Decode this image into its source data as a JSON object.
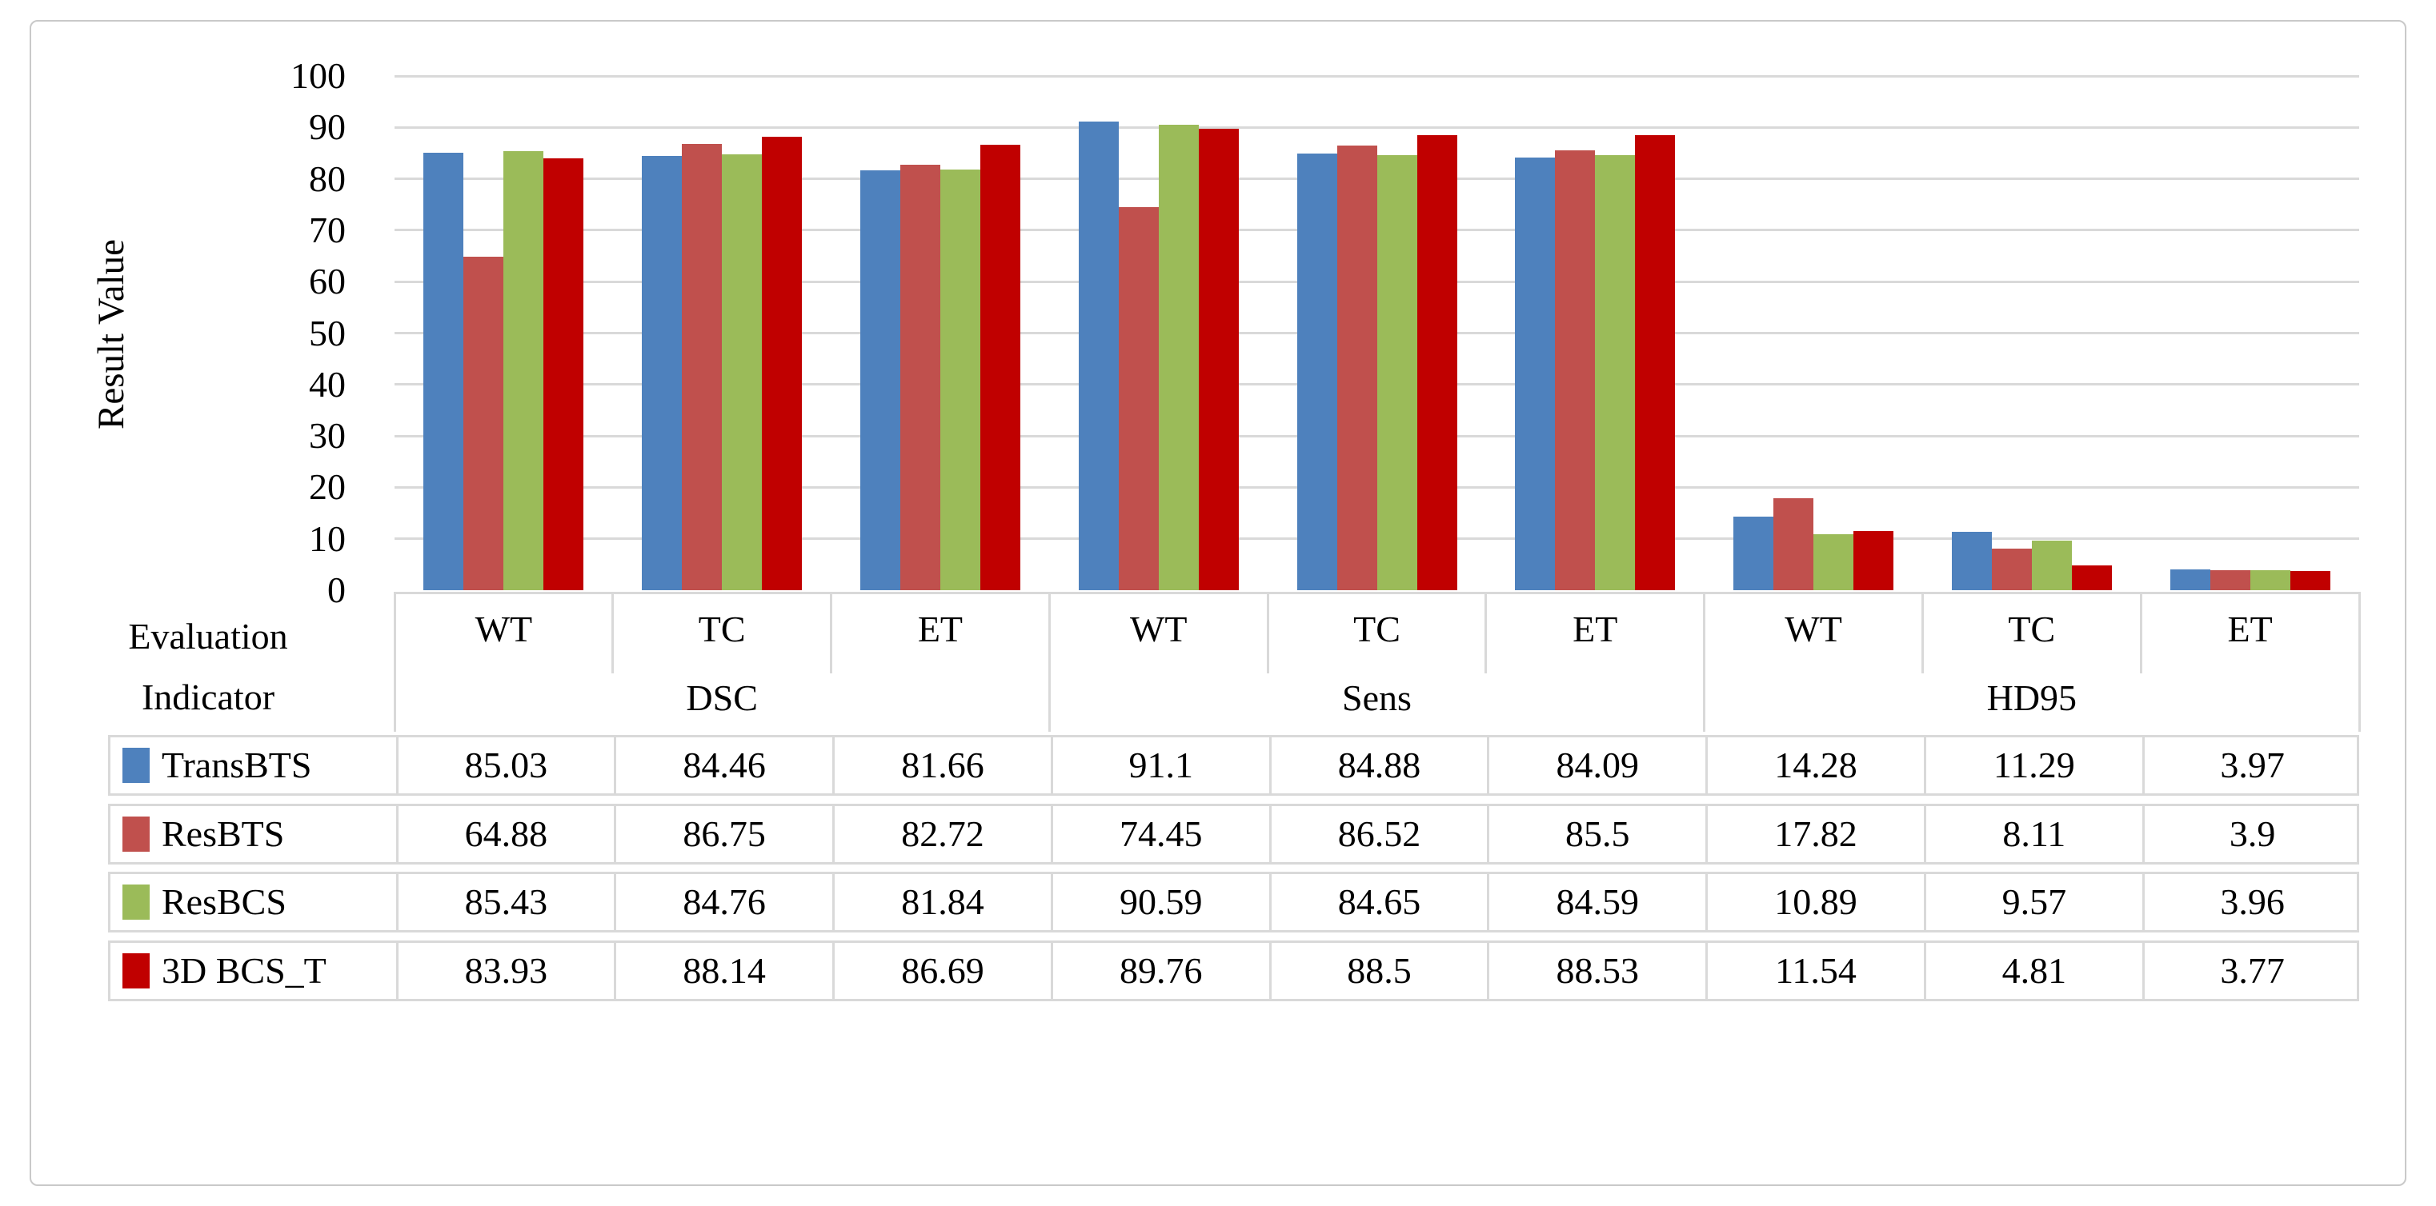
{
  "chart_data": {
    "type": "bar",
    "title": "",
    "ylabel": "Result Value",
    "xlabel": "",
    "ylim": [
      0,
      100
    ],
    "yticks": [
      0,
      10,
      20,
      30,
      40,
      50,
      60,
      70,
      80,
      90,
      100
    ],
    "grid": true,
    "legend_position": "table-left",
    "data_table_shown": true,
    "corner_label": {
      "line1": "Evaluation",
      "line2": "Indicator"
    },
    "groups": [
      {
        "label": "DSC",
        "categories": [
          "WT",
          "TC",
          "ET"
        ]
      },
      {
        "label": "Sens",
        "categories": [
          "WT",
          "TC",
          "ET"
        ]
      },
      {
        "label": "HD95",
        "categories": [
          "WT",
          "TC",
          "ET"
        ]
      }
    ],
    "categories": [
      "WT",
      "TC",
      "ET",
      "WT",
      "TC",
      "ET",
      "WT",
      "TC",
      "ET"
    ],
    "series": [
      {
        "name": "TransBTS",
        "color": "#4e81bd",
        "values": [
          85.03,
          84.46,
          81.66,
          91.1,
          84.88,
          84.09,
          14.28,
          11.29,
          3.97
        ]
      },
      {
        "name": "ResBTS",
        "color": "#c0504d",
        "values": [
          64.88,
          86.75,
          82.72,
          74.45,
          86.52,
          85.5,
          17.82,
          8.11,
          3.9
        ]
      },
      {
        "name": "ResBCS",
        "color": "#9bbb59",
        "values": [
          85.43,
          84.76,
          81.84,
          90.59,
          84.65,
          84.59,
          10.89,
          9.57,
          3.96
        ]
      },
      {
        "name": "3D BCS_T",
        "color": "#c00000",
        "values": [
          83.93,
          88.14,
          86.69,
          89.76,
          88.5,
          88.53,
          11.54,
          4.81,
          3.77
        ]
      }
    ],
    "colors": {
      "gridline": "#d9d9d9",
      "table_border": "#d9d9d9",
      "frame_border": "#c9c9c9",
      "text": "#000000"
    }
  }
}
